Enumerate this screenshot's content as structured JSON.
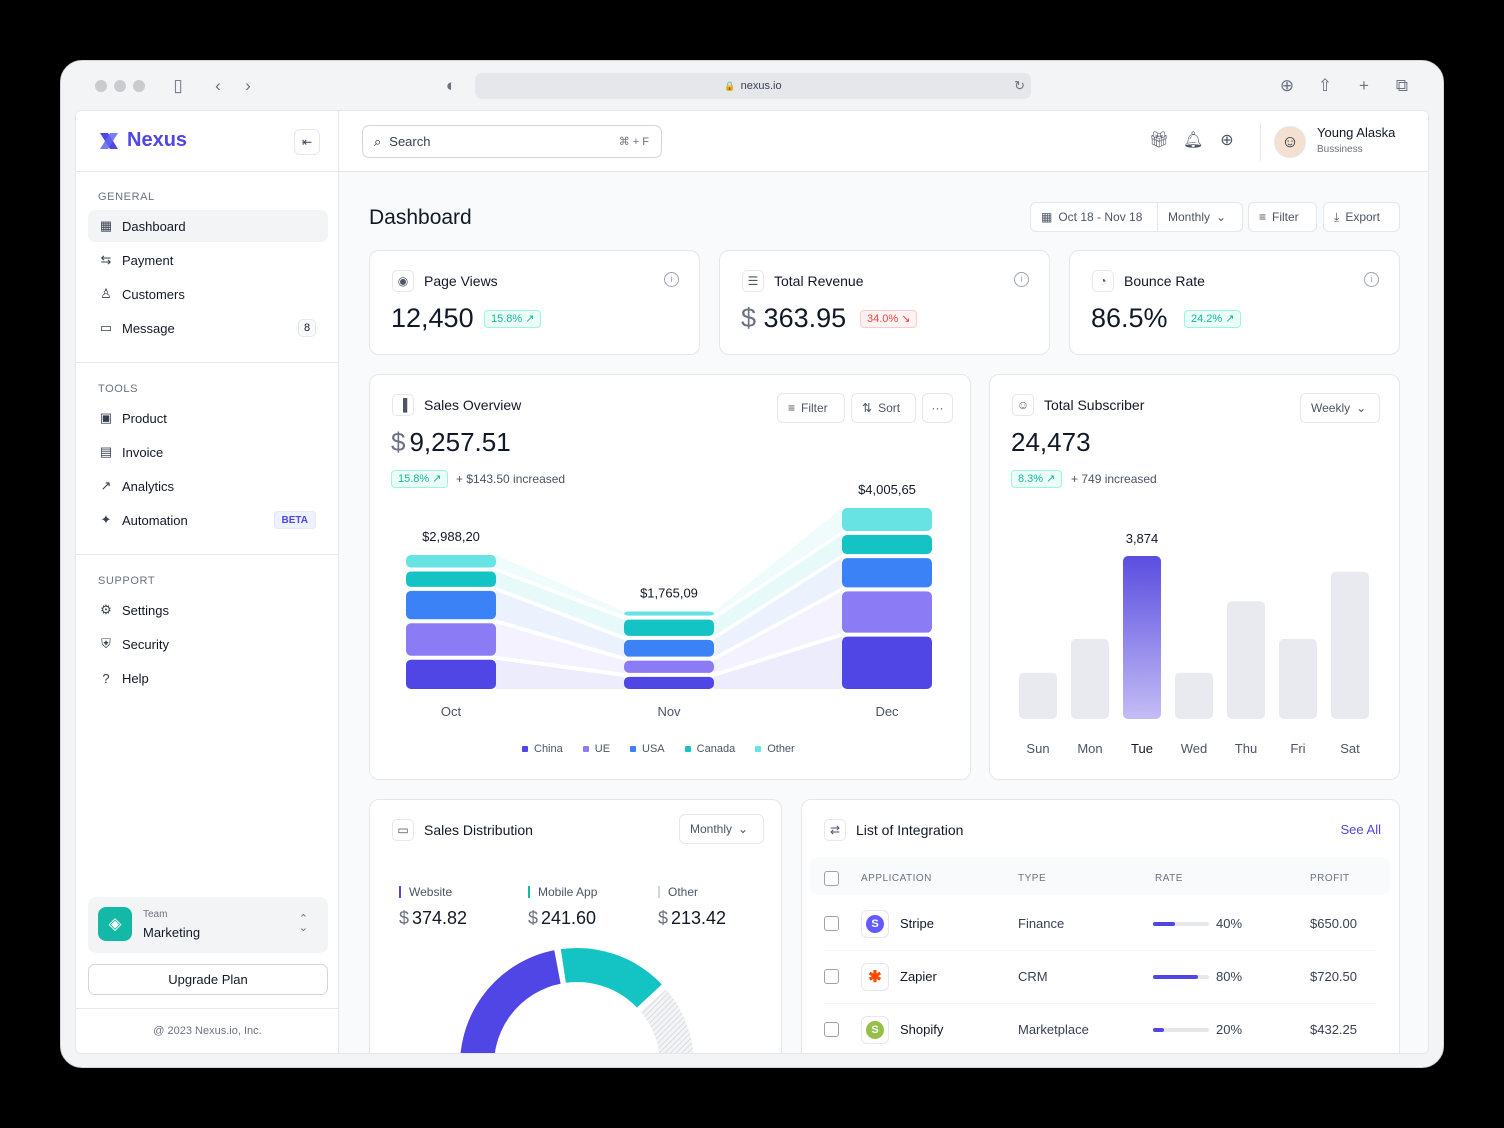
{
  "browser": {
    "url": "nexus.io"
  },
  "sidebar": {
    "brand": "Nexus",
    "sections": {
      "general": "GENERAL",
      "tools": "TOOLS",
      "support": "SUPPORT"
    },
    "general_items": [
      {
        "label": "Dashboard",
        "icon": "dashboard-icon",
        "active": true
      },
      {
        "label": "Payment",
        "icon": "transfer-icon"
      },
      {
        "label": "Customers",
        "icon": "users-icon"
      },
      {
        "label": "Message",
        "icon": "message-icon",
        "badge": "8"
      }
    ],
    "tools_items": [
      {
        "label": "Product",
        "icon": "bag-icon"
      },
      {
        "label": "Invoice",
        "icon": "document-icon"
      },
      {
        "label": "Analytics",
        "icon": "line-chart-icon"
      },
      {
        "label": "Automation",
        "icon": "sparkle-icon",
        "badge": "BETA"
      }
    ],
    "support_items": [
      {
        "label": "Settings",
        "icon": "gear-icon"
      },
      {
        "label": "Security",
        "icon": "shield-icon"
      },
      {
        "label": "Help",
        "icon": "help-icon"
      }
    ],
    "team": {
      "small": "Team",
      "name": "Marketing"
    },
    "upgrade_label": "Upgrade Plan",
    "copyright": "@ 2023 Nexus.io, Inc."
  },
  "topbar": {
    "search_placeholder": "Search",
    "search_shortcut": "⌘ + F",
    "user_name": "Young Alaska",
    "user_role": "Bussiness"
  },
  "header": {
    "title": "Dashboard",
    "date_range": "Oct 18 - Nov 18",
    "period": "Monthly",
    "filter_label": "Filter",
    "export_label": "Export"
  },
  "kpis": [
    {
      "label": "Page Views",
      "value": "12,450",
      "change": "15.8%",
      "direction": "up",
      "icon": "eye-icon"
    },
    {
      "label": "Total Revenue",
      "value": "363.95",
      "currency": "$",
      "change": "34.0%",
      "direction": "down",
      "icon": "database-icon"
    },
    {
      "label": "Bounce Rate",
      "value": "86.5%",
      "change": "24.2%",
      "direction": "up",
      "icon": "gauge-icon"
    }
  ],
  "sales_overview": {
    "title": "Sales Overview",
    "filter_label": "Filter",
    "sort_label": "Sort",
    "value": "9,257.51",
    "currency": "$",
    "change": "15.8%",
    "increase_text": "+ $143.50 increased"
  },
  "total_subscriber": {
    "title": "Total Subscriber",
    "period": "Weekly",
    "value": "24,473",
    "change": "8.3%",
    "increase_text": "+ 749 increased"
  },
  "sales_distribution": {
    "title": "Sales Distribution",
    "period": "Monthly",
    "items": [
      {
        "label": "Website",
        "value": "374.82",
        "currency": "$"
      },
      {
        "label": "Mobile App",
        "value": "241.60",
        "currency": "$"
      },
      {
        "label": "Other",
        "value": "213.42",
        "currency": "$"
      }
    ]
  },
  "integrations": {
    "title": "List of Integration",
    "see_all": "See All",
    "columns": [
      "APPLICATION",
      "TYPE",
      "RATE",
      "PROFIT"
    ],
    "rows": [
      {
        "name": "Stripe",
        "type": "Finance",
        "rate": "40%",
        "rate_value": 0.4,
        "profit": "$650.00",
        "icon": "stripe-icon"
      },
      {
        "name": "Zapier",
        "type": "CRM",
        "rate": "80%",
        "rate_value": 0.8,
        "profit": "$720.50",
        "icon": "zapier-icon"
      },
      {
        "name": "Shopify",
        "type": "Marketplace",
        "rate": "20%",
        "rate_value": 0.2,
        "profit": "$432.25",
        "icon": "shopify-icon"
      }
    ]
  },
  "colors": {
    "accent": "#4f46e5",
    "teal": "#14b8a6",
    "china": "#4f46e5",
    "ue": "#8b7cf6",
    "usa": "#3b82f6",
    "canada": "#14c3c3",
    "other": "#67e3e3"
  },
  "chart_data": [
    {
      "type": "bar",
      "stacked": true,
      "categories": [
        "Oct",
        "Nov",
        "Dec"
      ],
      "totals_labels": [
        "$2,988,20",
        "$1,765,09",
        "$4,005,65"
      ],
      "totals": [
        2988.2,
        1765.09,
        4005.65
      ],
      "series": [
        {
          "name": "China",
          "values": [
            720,
            350,
            1220
          ]
        },
        {
          "name": "UE",
          "values": [
            790,
            350,
            980
          ]
        },
        {
          "name": "USA",
          "values": [
            700,
            450,
            720
          ]
        },
        {
          "name": "Canada",
          "values": [
            420,
            440,
            500
          ]
        },
        {
          "name": "Other",
          "values": [
            358.2,
            175.09,
            585.65
          ]
        }
      ]
    },
    {
      "type": "bar",
      "categories": [
        "Sun",
        "Mon",
        "Tue",
        "Wed",
        "Thu",
        "Fri",
        "Sat"
      ],
      "values": [
        1100,
        1900,
        3874,
        1100,
        2800,
        1900,
        3500
      ],
      "highlight": "Tue",
      "value_label": "3,874"
    },
    {
      "type": "pie",
      "donut": true,
      "categories": [
        "Website",
        "Mobile App",
        "Other"
      ],
      "values": [
        374.82,
        241.6,
        213.42
      ]
    }
  ]
}
